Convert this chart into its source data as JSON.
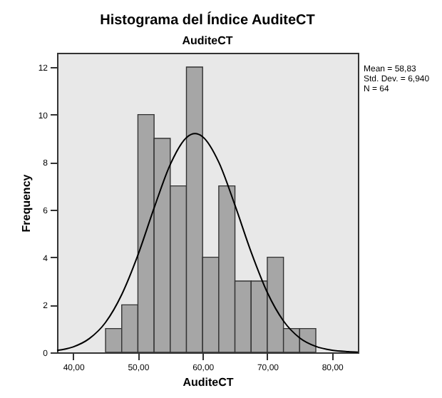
{
  "chart_data": {
    "type": "histogram",
    "title": "Histograma del Índice AuditeCT",
    "subtitle": "AuditeCT",
    "xlabel": "AuditeCT",
    "ylabel": "Frequency",
    "bins": [
      45,
      47.5,
      50,
      52.5,
      55,
      57.5,
      60,
      62.5,
      65,
      67.5,
      70,
      72.5,
      75,
      77.5
    ],
    "values": [
      1,
      2,
      10,
      9,
      7,
      12,
      4,
      7,
      3,
      3,
      4,
      1,
      1
    ],
    "color": "#a6a6a6",
    "series": [
      {
        "type": "line",
        "color": "#000000",
        "x": [
          37.5,
          40,
          42.5,
          45,
          47.5,
          50,
          52.5,
          55,
          57.5,
          58.83,
          60,
          62.5,
          65,
          67.5,
          70,
          72.5,
          75,
          77.5,
          80,
          82.5,
          84
        ],
        "values": [
          0.08,
          0.23,
          0.58,
          1.26,
          2.43,
          4.09,
          6.07,
          7.9,
          9.03,
          9.2,
          9.07,
          8.0,
          6.19,
          4.22,
          2.52,
          1.32,
          0.61,
          0.25,
          0.09,
          0.03,
          0.01
        ]
      }
    ],
    "xlim": [
      37.5,
      84
    ],
    "ylim": [
      0,
      12.6
    ],
    "xticks": [
      {
        "value": 40,
        "label": "40,00"
      },
      {
        "value": 50,
        "label": "50,00"
      },
      {
        "value": 60,
        "label": "60,00"
      },
      {
        "value": 70,
        "label": "70,00"
      },
      {
        "value": 80,
        "label": "80,00"
      }
    ],
    "yticks": [
      0,
      2,
      4,
      6,
      8,
      10,
      12
    ],
    "annotations": [
      "Mean = 58,83",
      "Std. Dev. = 6,940",
      "N = 64"
    ],
    "grid": false
  }
}
